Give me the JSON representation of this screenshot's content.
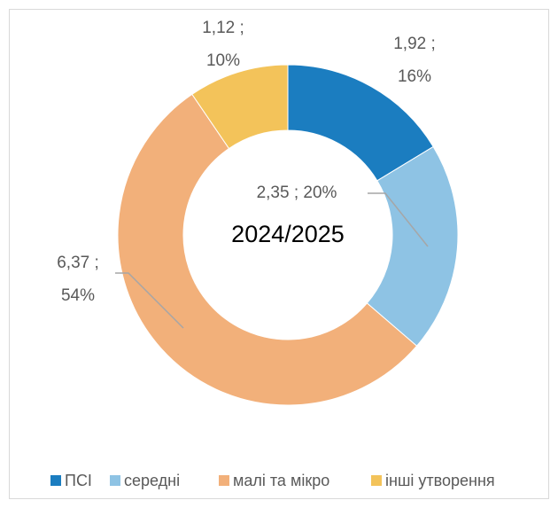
{
  "chart_data": {
    "type": "donut",
    "center_label": "2024/2025",
    "categories": [
      "ПСІ",
      "середні",
      "малі та мікро",
      "інші утворення"
    ],
    "values": [
      1.92,
      2.35,
      6.37,
      1.12
    ],
    "value_labels": [
      "1,92 ;\n16%",
      "2,35 ; 20%",
      "6,37 ;\n54%",
      "1,12 ;\n10%"
    ],
    "colors": [
      "#1b7dc0",
      "#8ec3e4",
      "#f2b07a",
      "#f3c35a"
    ],
    "legend": "bottom"
  }
}
